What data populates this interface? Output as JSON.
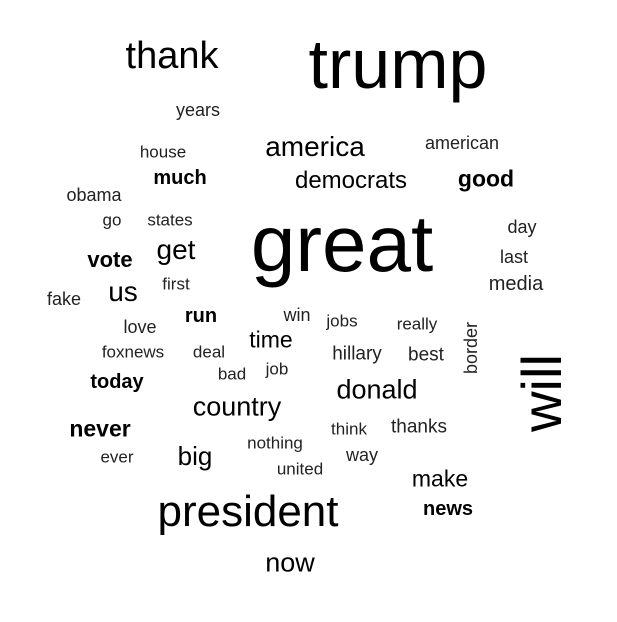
{
  "wordcloud": {
    "words": [
      {
        "text": "trump"
      },
      {
        "text": "thank"
      },
      {
        "text": "years"
      },
      {
        "text": "house"
      },
      {
        "text": "america"
      },
      {
        "text": "american"
      },
      {
        "text": "obama"
      },
      {
        "text": "much"
      },
      {
        "text": "democrats"
      },
      {
        "text": "good"
      },
      {
        "text": "go"
      },
      {
        "text": "states"
      },
      {
        "text": "great"
      },
      {
        "text": "day"
      },
      {
        "text": "vote"
      },
      {
        "text": "get"
      },
      {
        "text": "last"
      },
      {
        "text": "fake"
      },
      {
        "text": "us"
      },
      {
        "text": "first"
      },
      {
        "text": "media"
      },
      {
        "text": "run"
      },
      {
        "text": "win"
      },
      {
        "text": "love"
      },
      {
        "text": "jobs"
      },
      {
        "text": "really"
      },
      {
        "text": "border"
      },
      {
        "text": "time"
      },
      {
        "text": "foxnews"
      },
      {
        "text": "deal"
      },
      {
        "text": "hillary"
      },
      {
        "text": "best"
      },
      {
        "text": "will"
      },
      {
        "text": "bad"
      },
      {
        "text": "job"
      },
      {
        "text": "today"
      },
      {
        "text": "donald"
      },
      {
        "text": "country"
      },
      {
        "text": "never"
      },
      {
        "text": "think"
      },
      {
        "text": "thanks"
      },
      {
        "text": "nothing"
      },
      {
        "text": "big"
      },
      {
        "text": "ever"
      },
      {
        "text": "way"
      },
      {
        "text": "united"
      },
      {
        "text": "make"
      },
      {
        "text": "president"
      },
      {
        "text": "news"
      },
      {
        "text": "now"
      }
    ]
  }
}
